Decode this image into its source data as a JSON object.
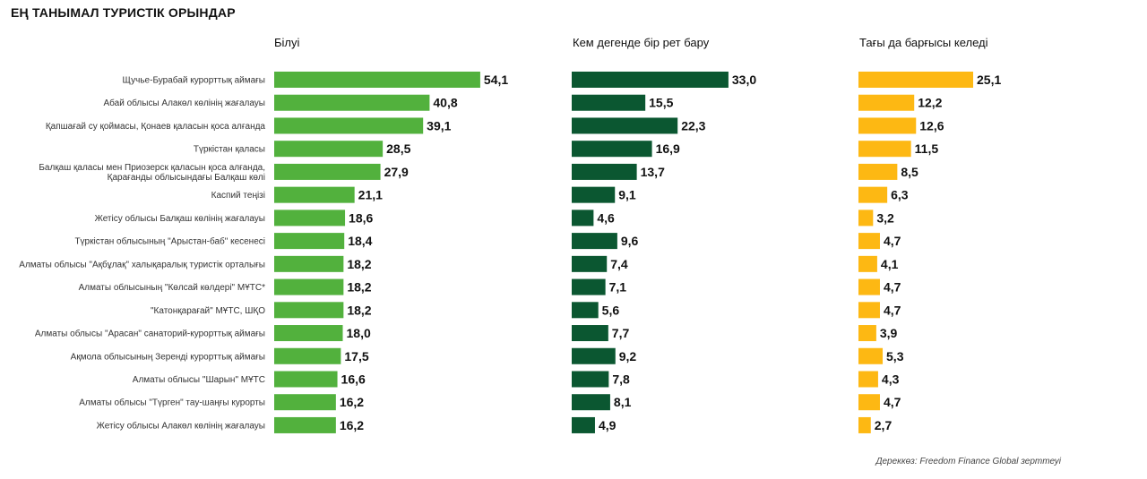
{
  "title": "ЕҢ ТАНЫМАЛ ТУРИСТІК ОРЫНДАР",
  "source": "Дереккөз: Freedom Finance Global зерттеуі",
  "colors": {
    "awareness": "#52b13d",
    "visited": "#0b5731",
    "revisit": "#fdb813"
  },
  "chart_data": {
    "type": "bar",
    "orientation": "horizontal",
    "categories": [
      "Щучье-Бурабай курорттық аймағы",
      "Абай облысы Алакөл көлінің жағалауы",
      "Қапшағай су қоймасы, Қонаев қаласын қоса алғанда",
      "Түркістан қаласы",
      [
        "Балқаш қаласы мен Приозерск қаласын қоса алғанда,",
        "Қарағанды облысындағы Балқаш көлі"
      ],
      "Каспий теңізі",
      "Жетісу облысы Балқаш көлінің жағалауы",
      "Түркістан облысының \"Арыстан-баб\" кесенесі",
      "Алматы облысы \"Ақбұлақ\" халықаралық туристік орталығы",
      "Алматы облысының \"Көлсай көлдері\" МҰТС*",
      "\"Катонқарағай\" МҰТС, ШҚО",
      "Алматы облысы \"Арасан\" санаторий-курорттық аймағы",
      "Ақмола облысының Зеренді курорттық аймағы",
      "Алматы облысы \"Шарын\" МҰТС",
      "Алматы облысы \"Түрген\" тау-шаңғы курорты",
      "Жетісу облысы Алакөл көлінің жағалауы"
    ],
    "series": [
      {
        "name": "Білуі",
        "values": [
          54.1,
          40.8,
          39.1,
          28.5,
          27.9,
          21.1,
          18.6,
          18.4,
          18.2,
          18.2,
          18.2,
          18.0,
          17.5,
          16.6,
          16.2,
          16.2
        ],
        "labels": [
          "54,1",
          "40,8",
          "39,1",
          "28,5",
          "27,9",
          "21,1",
          "18,6",
          "18,4",
          "18,2",
          "18,2",
          "18,2",
          "18,0",
          "17,5",
          "16,6",
          "16,2",
          "16,2"
        ]
      },
      {
        "name": "Кем дегенде бір рет бару",
        "values": [
          33.0,
          15.5,
          22.3,
          16.9,
          13.7,
          9.1,
          4.6,
          9.6,
          7.4,
          7.1,
          5.6,
          7.7,
          9.2,
          7.8,
          8.1,
          4.9
        ],
        "labels": [
          "33,0",
          "15,5",
          "22,3",
          "16,9",
          "13,7",
          "9,1",
          "4,6",
          "9,6",
          "7,4",
          "7,1",
          "5,6",
          "7,7",
          "9,2",
          "7,8",
          "8,1",
          "4,9"
        ]
      },
      {
        "name": "Тағы да барғысы келеді",
        "values": [
          25.1,
          12.2,
          12.6,
          11.5,
          8.5,
          6.3,
          3.2,
          4.7,
          4.1,
          4.7,
          4.7,
          3.9,
          5.3,
          4.3,
          4.7,
          2.7
        ],
        "labels": [
          "25,1",
          "12,2",
          "12,6",
          "11,5",
          "8,5",
          "6,3",
          "3,2",
          "4,7",
          "4,1",
          "4,7",
          "4,7",
          "3,9",
          "5,3",
          "4,3",
          "4,7",
          "2,7"
        ]
      }
    ],
    "xlabel": "",
    "ylabel": "",
    "grid": false,
    "legend": "none"
  }
}
